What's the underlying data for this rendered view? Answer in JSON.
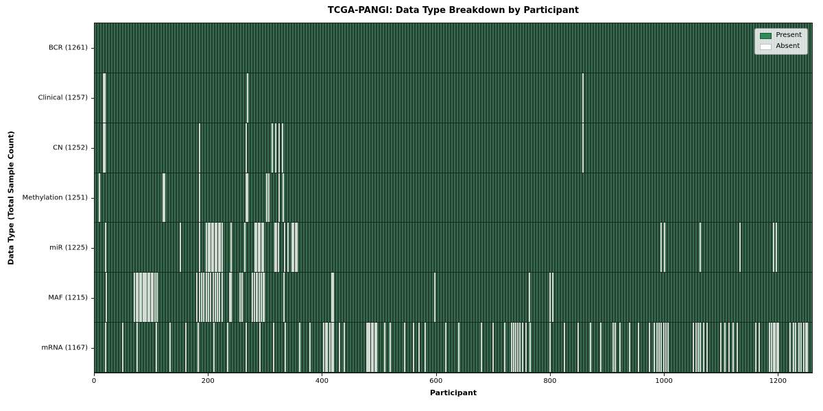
{
  "colors": {
    "present": "#2e8b57",
    "absent": "#ffffff",
    "bar_edge": "#1c1c1c",
    "row_fill_dark": "#20402e",
    "row_fill_light": "#3a6b50",
    "absent_stripe": "#d4d9d4",
    "legend_bg": "#e4e6e3"
  },
  "chart_data": {
    "type": "heatmap",
    "title": "TCGA-PANGI: Data Type Breakdown by Participant",
    "xlabel": "Participant",
    "ylabel": "Data Type (Total Sample Count)",
    "n_participants": 1261,
    "xlim": [
      0,
      1261
    ],
    "xticks": [
      0,
      200,
      400,
      600,
      800,
      1000,
      1200
    ],
    "grid": false,
    "legend": {
      "position": "upper right",
      "entries": [
        {
          "label": "Present",
          "color": "#2e8b57"
        },
        {
          "label": "Absent",
          "color": "#ffffff"
        }
      ]
    },
    "rows": [
      {
        "data_type": "BCR",
        "label": "BCR (1261)",
        "total_samples": 1261,
        "absent_count": 0,
        "absent_participants": []
      },
      {
        "data_type": "Clinical",
        "label": "Clinical (1257)",
        "total_samples": 1257,
        "absent_count": 4,
        "absent_participants": [
          16,
          18,
          269,
          858
        ]
      },
      {
        "data_type": "CN",
        "label": "CN (1252)",
        "total_samples": 1252,
        "absent_count": 9,
        "absent_participants": [
          16,
          18,
          184,
          266,
          312,
          318,
          324,
          330,
          858
        ]
      },
      {
        "data_type": "Methylation",
        "label": "Methylation (1251)",
        "total_samples": 1251,
        "absent_count": 10,
        "absent_participants": [
          8,
          120,
          123,
          184,
          266,
          269,
          302,
          306,
          324,
          331
        ]
      },
      {
        "data_type": "miR",
        "label": "miR (1225)",
        "total_samples": 1225,
        "absent_count": 36,
        "absent_participants": [
          19,
          151,
          184,
          197,
          200,
          203,
          206,
          209,
          212,
          215,
          218,
          221,
          224,
          240,
          264,
          282,
          285,
          288,
          291,
          294,
          297,
          317,
          320,
          323,
          334,
          340,
          347,
          350,
          353,
          356,
          996,
          1002,
          1065,
          1135,
          1194,
          1198
        ]
      },
      {
        "data_type": "MAF",
        "label": "MAF (1215)",
        "total_samples": 1215,
        "absent_count": 46,
        "absent_participants": [
          20,
          70,
          73,
          76,
          79,
          82,
          85,
          88,
          91,
          94,
          97,
          100,
          103,
          106,
          110,
          180,
          184,
          188,
          192,
          196,
          200,
          204,
          208,
          212,
          216,
          220,
          224,
          237,
          240,
          256,
          259,
          277,
          281,
          285,
          286,
          289,
          293,
          296,
          298,
          333,
          417,
          420,
          598,
          764,
          801,
          805
        ]
      },
      {
        "data_type": "mRNA",
        "label": "mRNA (1167)",
        "total_samples": 1167,
        "absent_count": 94,
        "absent_participants": [
          19,
          50,
          75,
          109,
          133,
          160,
          182,
          210,
          234,
          266,
          290,
          315,
          335,
          360,
          379,
          403,
          406,
          409,
          414,
          417,
          420,
          430,
          439,
          478,
          481,
          484,
          487,
          490,
          493,
          496,
          510,
          520,
          545,
          560,
          570,
          581,
          617,
          640,
          680,
          700,
          721,
          733,
          736,
          740,
          744,
          748,
          752,
          758,
          766,
          800,
          826,
          850,
          872,
          890,
          911,
          915,
          923,
          940,
          956,
          975,
          984,
          988,
          992,
          996,
          1000,
          1004,
          1008,
          1053,
          1057,
          1061,
          1065,
          1070,
          1077,
          1101,
          1108,
          1115,
          1122,
          1129,
          1162,
          1168,
          1186,
          1190,
          1193,
          1196,
          1199,
          1202,
          1222,
          1229,
          1232,
          1238,
          1242,
          1246,
          1250,
          1253
        ]
      }
    ]
  }
}
